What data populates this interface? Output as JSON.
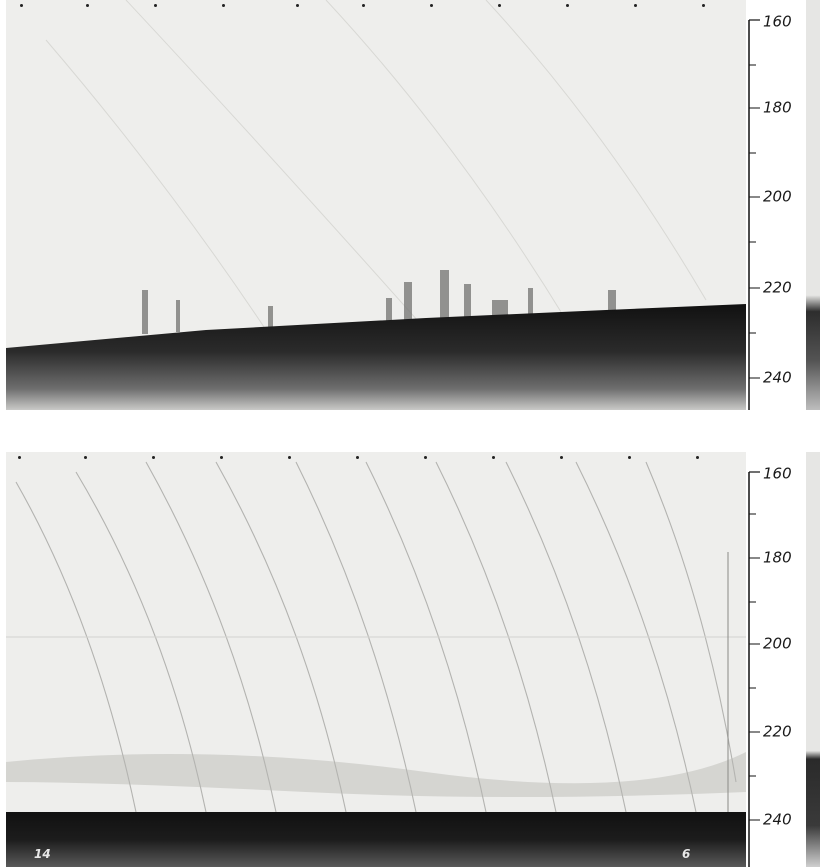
{
  "panels": [
    {
      "id": "top",
      "depth_scale": {
        "labels": [
          "160",
          "180",
          "200",
          "220",
          "240"
        ],
        "range": [
          160,
          245
        ]
      },
      "seabed": "sloping, with tree-like echo clusters above bottom"
    },
    {
      "id": "bottom",
      "depth_scale": {
        "labels": [
          "160",
          "180",
          "200",
          "220",
          "240"
        ],
        "range": [
          160,
          245
        ]
      },
      "hand_notes": [
        "14",
        "6"
      ]
    }
  ],
  "colors": {
    "paper": "#eeeeec",
    "seabed": "#1e1e1e",
    "ink": "#1a1a1a"
  }
}
